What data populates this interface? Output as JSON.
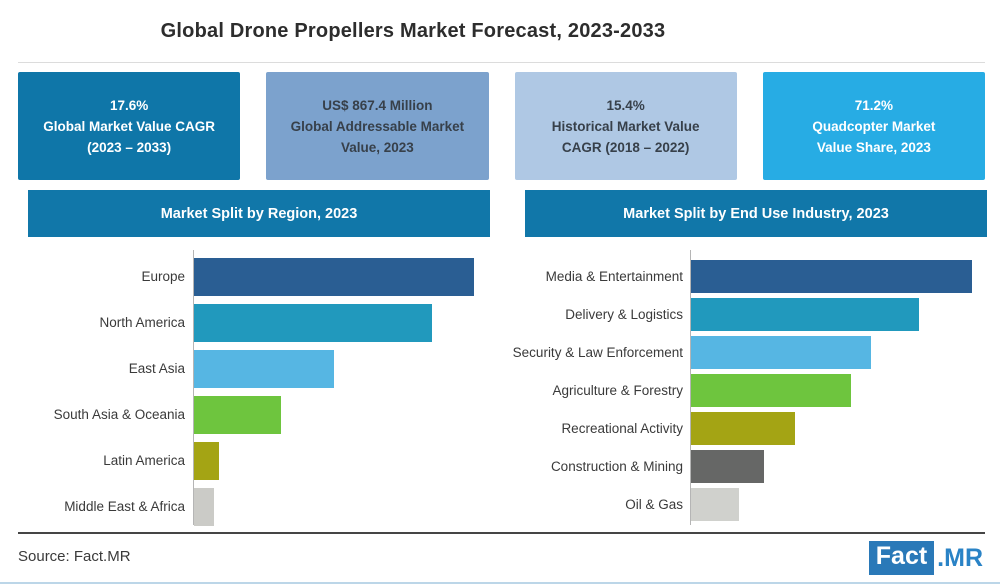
{
  "title": "Global Drone Propellers Market Forecast, 2023-2033",
  "stat_boxes": [
    {
      "lines": [
        "17.6%",
        "Global Market Value CAGR",
        "(2023 – 2033)"
      ],
      "bg": "#0f76a8",
      "text_color": "#ffffff"
    },
    {
      "lines": [
        "US$ 867.4 Million",
        "Global Addressable Market",
        "Value, 2023"
      ],
      "bg": "#7ca2cd",
      "text_color": "#37404a"
    },
    {
      "lines": [
        "15.4%",
        "Historical Market Value",
        "CAGR (2018 – 2022)"
      ],
      "bg": "#afc8e4",
      "text_color": "#37404a"
    },
    {
      "lines": [
        "71.2%",
        "Quadcopter Market",
        "Value Share, 2023"
      ],
      "bg": "#27ace4",
      "text_color": "#ffffff"
    }
  ],
  "section_headers": {
    "left": "Market Split by Region, 2023",
    "right": "Market Split by End Use Industry, 2023"
  },
  "chart_data": [
    {
      "type": "bar",
      "orientation": "horizontal",
      "title": "Market Split by Region, 2023",
      "categories": [
        "Europe",
        "North America",
        "East Asia",
        "South Asia & Oceania",
        "Latin America",
        "Middle East & Africa"
      ],
      "values_relative_pct": [
        100,
        85,
        50,
        31,
        9,
        7
      ],
      "colors": [
        "#2a5e93",
        "#2199bd",
        "#56b6e3",
        "#6ec53e",
        "#a4a414",
        "#cbcbc7"
      ],
      "value_axis_shown": false,
      "data_labels_shown": false,
      "grid": false,
      "legend": false
    },
    {
      "type": "bar",
      "orientation": "horizontal",
      "title": "Market Split by End Use Industry, 2023",
      "categories": [
        "Media & Entertainment",
        "Delivery & Logistics",
        "Security & Law Enforcement",
        "Agriculture & Forestry",
        "Recreational Activity",
        "Construction & Mining",
        "Oil & Gas"
      ],
      "values_relative_pct": [
        100,
        81,
        64,
        57,
        37,
        26,
        17
      ],
      "colors": [
        "#2a5e93",
        "#2199bd",
        "#56b6e3",
        "#6ec53e",
        "#a4a414",
        "#666766",
        "#d0d1cd"
      ],
      "value_axis_shown": false,
      "data_labels_shown": false,
      "grid": false,
      "legend": false
    }
  ],
  "footer": {
    "source": "Source: Fact.MR",
    "logo": {
      "fact": "Fact",
      "mr": ".MR",
      "box_color": "#2a79b8",
      "mr_color": "#2a83c6"
    }
  }
}
